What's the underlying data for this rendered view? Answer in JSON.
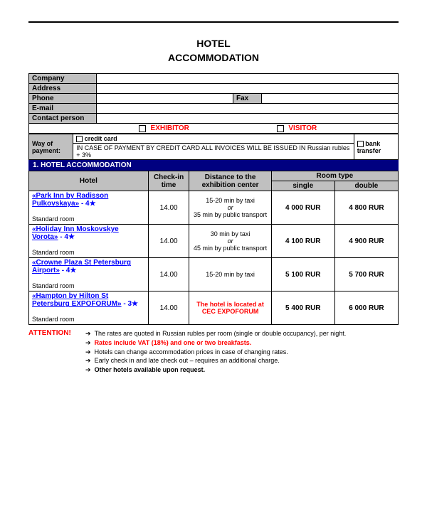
{
  "title_line1": "HOTEL",
  "title_line2": "ACCOMMODATION",
  "info": {
    "company": "Company",
    "address": "Address",
    "phone": "Phone",
    "fax": "Fax",
    "email": "E-mail",
    "contact": "Contact person"
  },
  "role": {
    "exhibitor": "EXHIBITOR",
    "visitor": "VISITOR"
  },
  "payment": {
    "label": "Way of payment:",
    "credit_card": "credit card",
    "note": "IN CASE OF PAYMENT BY CREDIT CARD ALL INVOICES WILL BE ISSUED IN Russian rubles + 3%",
    "bank_transfer": "bank transfer"
  },
  "section1": "1.  HOTEL ACCOMMODATION",
  "headers": {
    "hotel": "Hotel",
    "checkin": "Check-in time",
    "distance": "Distance to the exhibition center",
    "roomtype": "Room type",
    "single": "single",
    "double": "double"
  },
  "hotels": [
    {
      "name": "«Park Inn by Radisson Pulkovskaya»",
      "stars": "- 4★",
      "std": "Standard room",
      "checkin": "14.00",
      "distance": "15-20 min by taxi\nor\n35 min by public transport",
      "single": "4 000 RUR",
      "double": "4 800 RUR",
      "distance_red": false
    },
    {
      "name": "«Holiday Inn Moskovskye Vorota»",
      "stars": "- 4★",
      "std": "Standard room",
      "checkin": "14.00",
      "distance": "30 min by taxi\nor\n45 min by public transport",
      "single": "4 100 RUR",
      "double": "4 900 RUR",
      "distance_red": false
    },
    {
      "name": "«Crowne Plaza St Petersburg Airport»",
      "stars": "- 4★",
      "std": "Standard room",
      "checkin": "14.00",
      "distance": "15-20 min by taxi",
      "single": "5 100 RUR",
      "double": "5 700 RUR",
      "distance_red": false
    },
    {
      "name": "«Hampton by Hilton St Petersburg EXPOFORUM»",
      "stars": "- 3★",
      "std": "Standard room",
      "checkin": "14.00",
      "distance": "The hotel is located at CEC EXPOFORUM",
      "single": "5 400 RUR",
      "double": "6 000 RUR",
      "distance_red": true
    }
  ],
  "attention": {
    "label": "ATTENTION!",
    "lines": [
      {
        "text": "The rates are quoted in Russian rubles per room (single or double occupancy), per night.",
        "red": false,
        "bold": false
      },
      {
        "text": "Rates include VAT (18%) and one or two breakfasts.",
        "red": true,
        "bold": true
      },
      {
        "text": "Hotels can change accommodation prices in case of changing rates.",
        "red": false,
        "bold": false
      },
      {
        "text": "Early check in and late check out – requires an additional charge.",
        "red": false,
        "bold": false
      },
      {
        "text": "Other hotels available upon request.",
        "red": false,
        "bold": true
      }
    ]
  },
  "colors": {
    "gray": "#c0c0c0",
    "navy": "#000080",
    "red": "#ff0000",
    "blue": "#0000ff"
  }
}
